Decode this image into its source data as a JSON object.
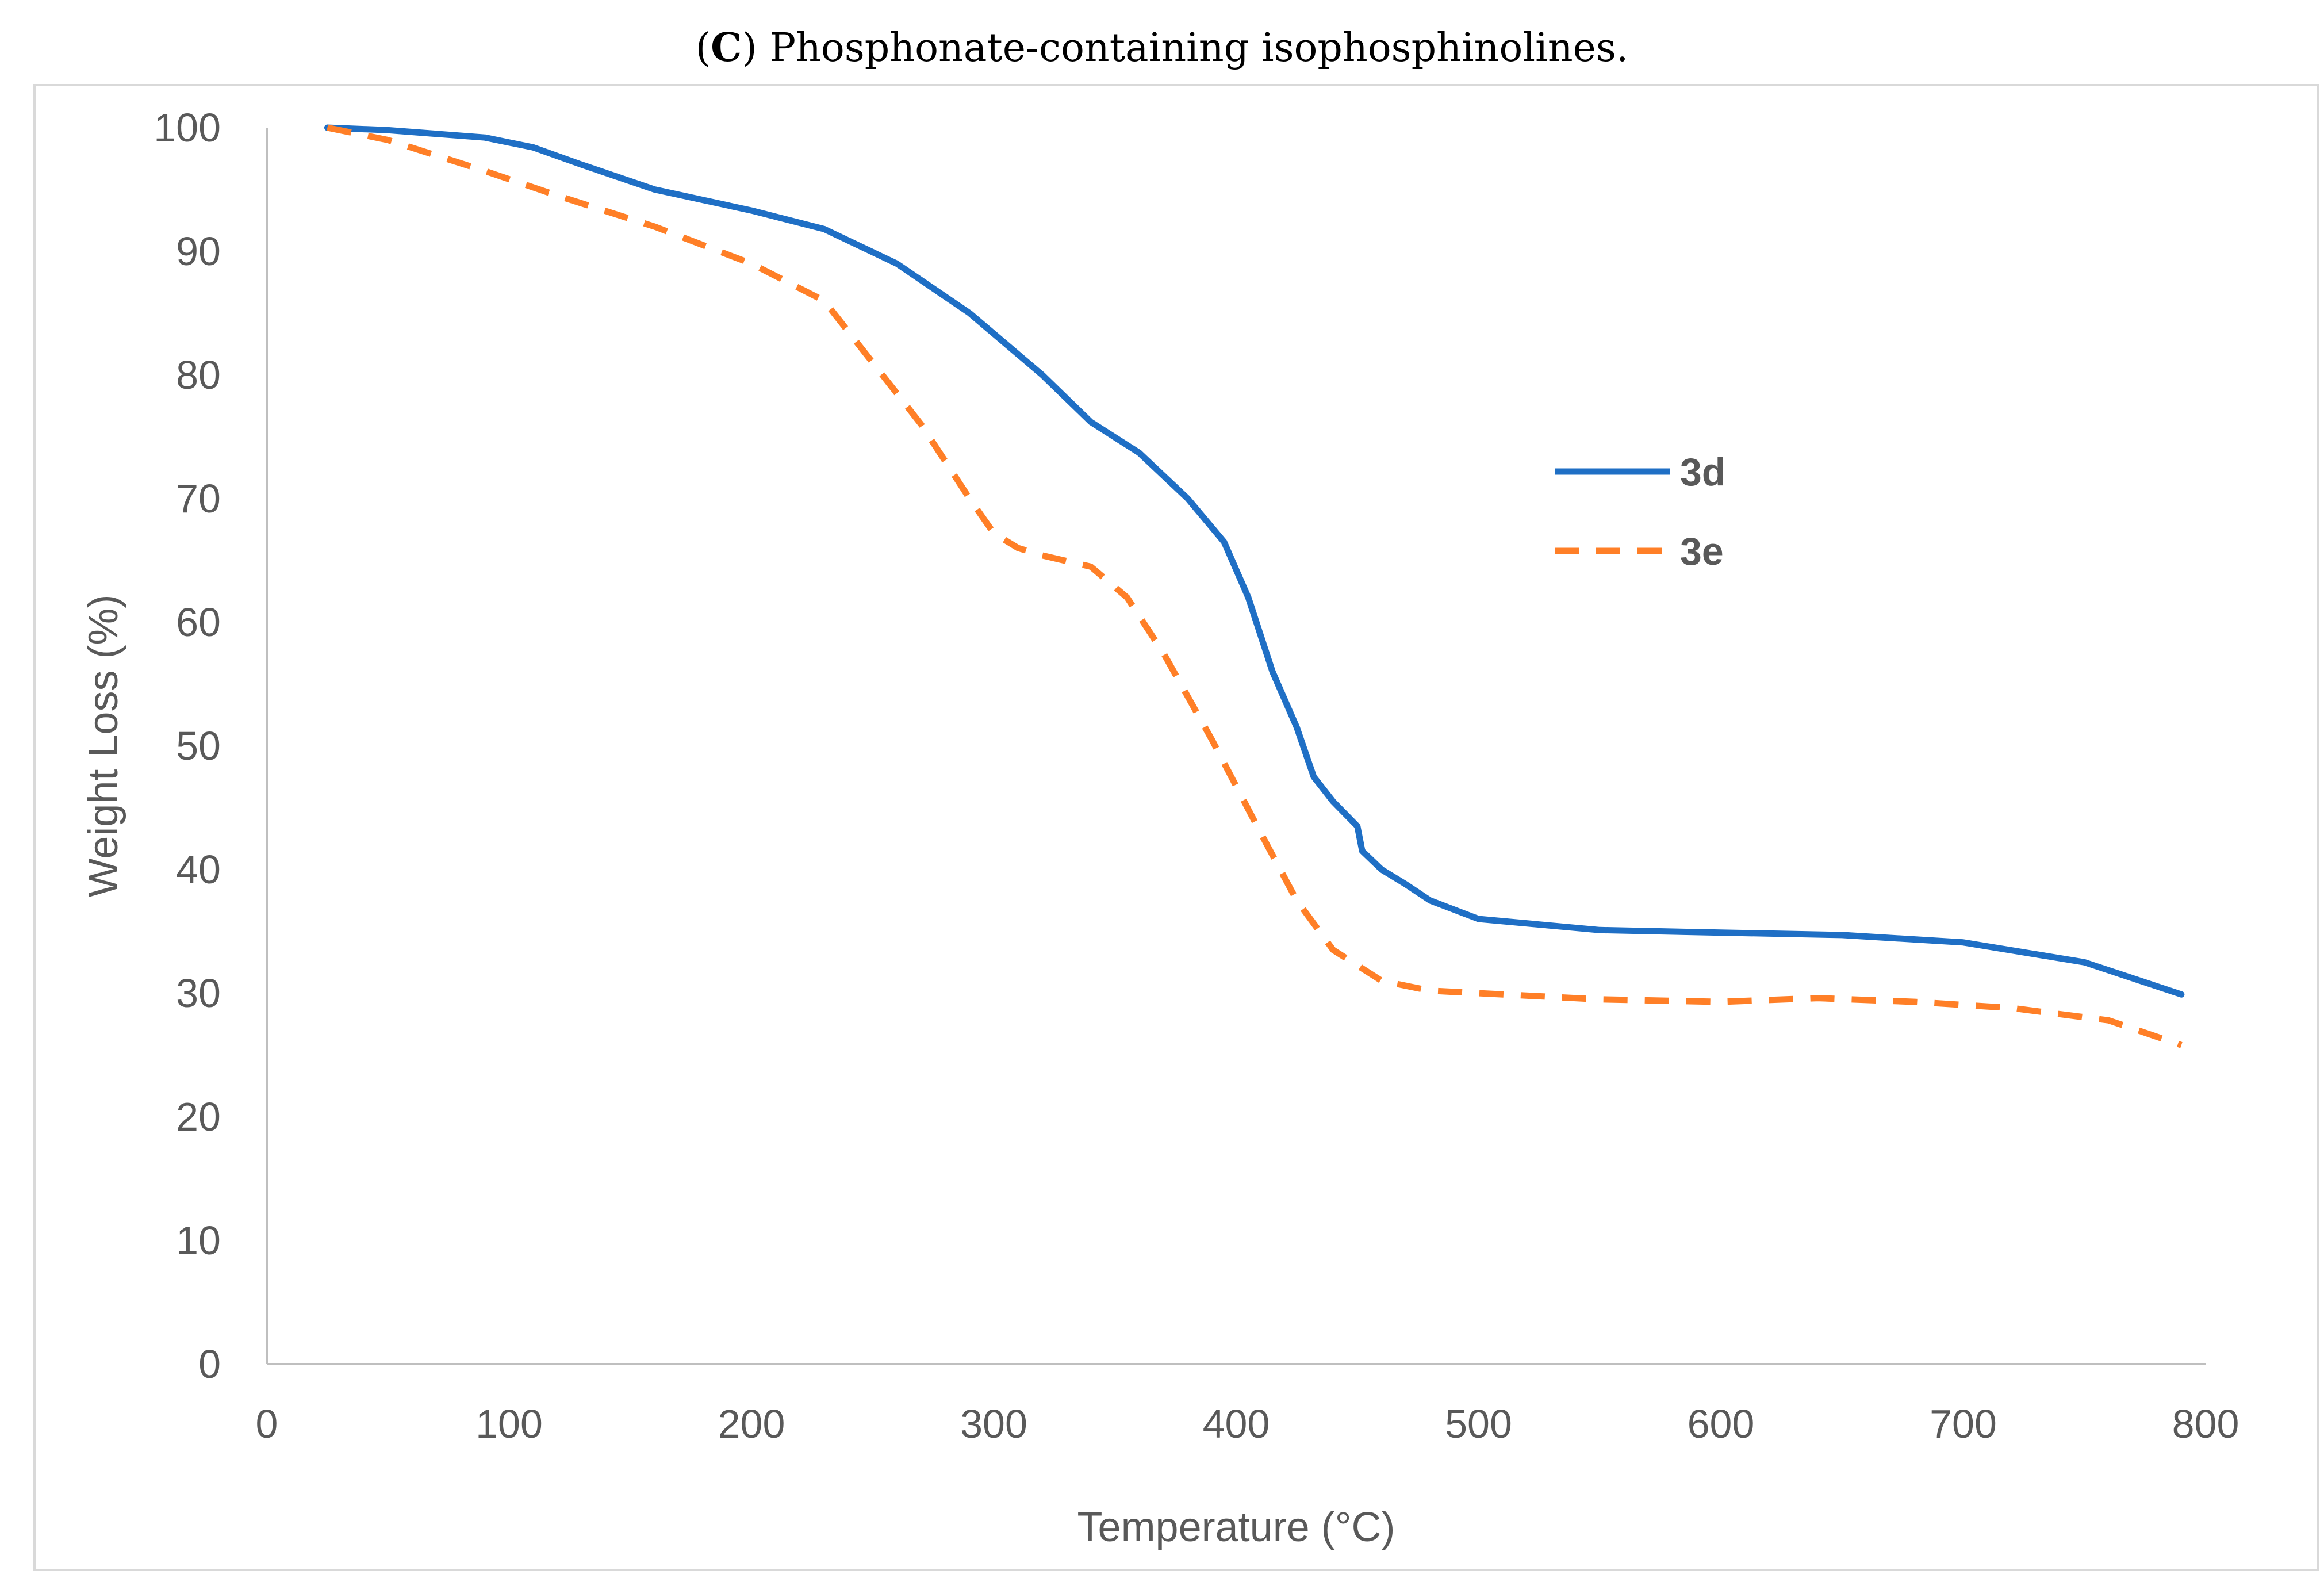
{
  "caption": {
    "prefix": "(",
    "letter": "C",
    "text": ") Phosphonate-containing isophosphinolines."
  },
  "chart_data": {
    "type": "line",
    "title": "(C) Phosphonate-containing isophosphinolines.",
    "xlabel": "Temperature (°C)",
    "ylabel": "Weight Loss (%)",
    "xlim": [
      0,
      800
    ],
    "ylim": [
      0,
      100
    ],
    "xticks": [
      0,
      100,
      200,
      300,
      400,
      500,
      600,
      700,
      800
    ],
    "yticks": [
      0,
      10,
      20,
      30,
      40,
      50,
      60,
      70,
      80,
      90,
      100
    ],
    "xtick_labels": [
      "0",
      "100",
      "200",
      "300",
      "400",
      "500",
      "600",
      "700",
      "800"
    ],
    "ytick_labels": [
      "0",
      "10",
      "20",
      "30",
      "40",
      "50",
      "60",
      "70",
      "80",
      "90",
      "100"
    ],
    "grid": false,
    "legend_position": "right-center",
    "series": [
      {
        "name": "3d",
        "color": "#1f6fc5",
        "dash": "solid",
        "x": [
          25,
          50,
          90,
          110,
          130,
          160,
          200,
          230,
          260,
          290,
          320,
          340,
          360,
          380,
          395,
          405,
          415,
          425,
          432,
          440,
          450,
          452,
          460,
          470,
          480,
          500,
          550,
          600,
          650,
          700,
          750,
          790
        ],
        "y": [
          100,
          99.8,
          99.2,
          98.4,
          97,
          95,
          93.3,
          91.8,
          89,
          85,
          80,
          76.2,
          73.7,
          70,
          66.5,
          62,
          56,
          51.5,
          47.5,
          45.5,
          43.5,
          41.5,
          40,
          38.8,
          37.5,
          36,
          35.1,
          34.9,
          34.7,
          34.1,
          32.5,
          29.9
        ]
      },
      {
        "name": "3e",
        "color": "#ff7f27",
        "dash": "dashed",
        "x": [
          25,
          50,
          90,
          120,
          160,
          200,
          230,
          250,
          270,
          290,
          300,
          310,
          320,
          340,
          355,
          370,
          390,
          410,
          425,
          440,
          460,
          480,
          500,
          550,
          600,
          640,
          680,
          720,
          760,
          790
        ],
        "y": [
          100,
          99,
          96.5,
          94.5,
          92,
          89,
          86,
          81,
          76,
          70,
          67.2,
          66,
          65.4,
          64.5,
          62,
          57.5,
          50.5,
          43,
          37.5,
          33.5,
          31,
          30.2,
          30,
          29.5,
          29.3,
          29.6,
          29.3,
          28.8,
          27.8,
          25.8
        ]
      }
    ]
  }
}
